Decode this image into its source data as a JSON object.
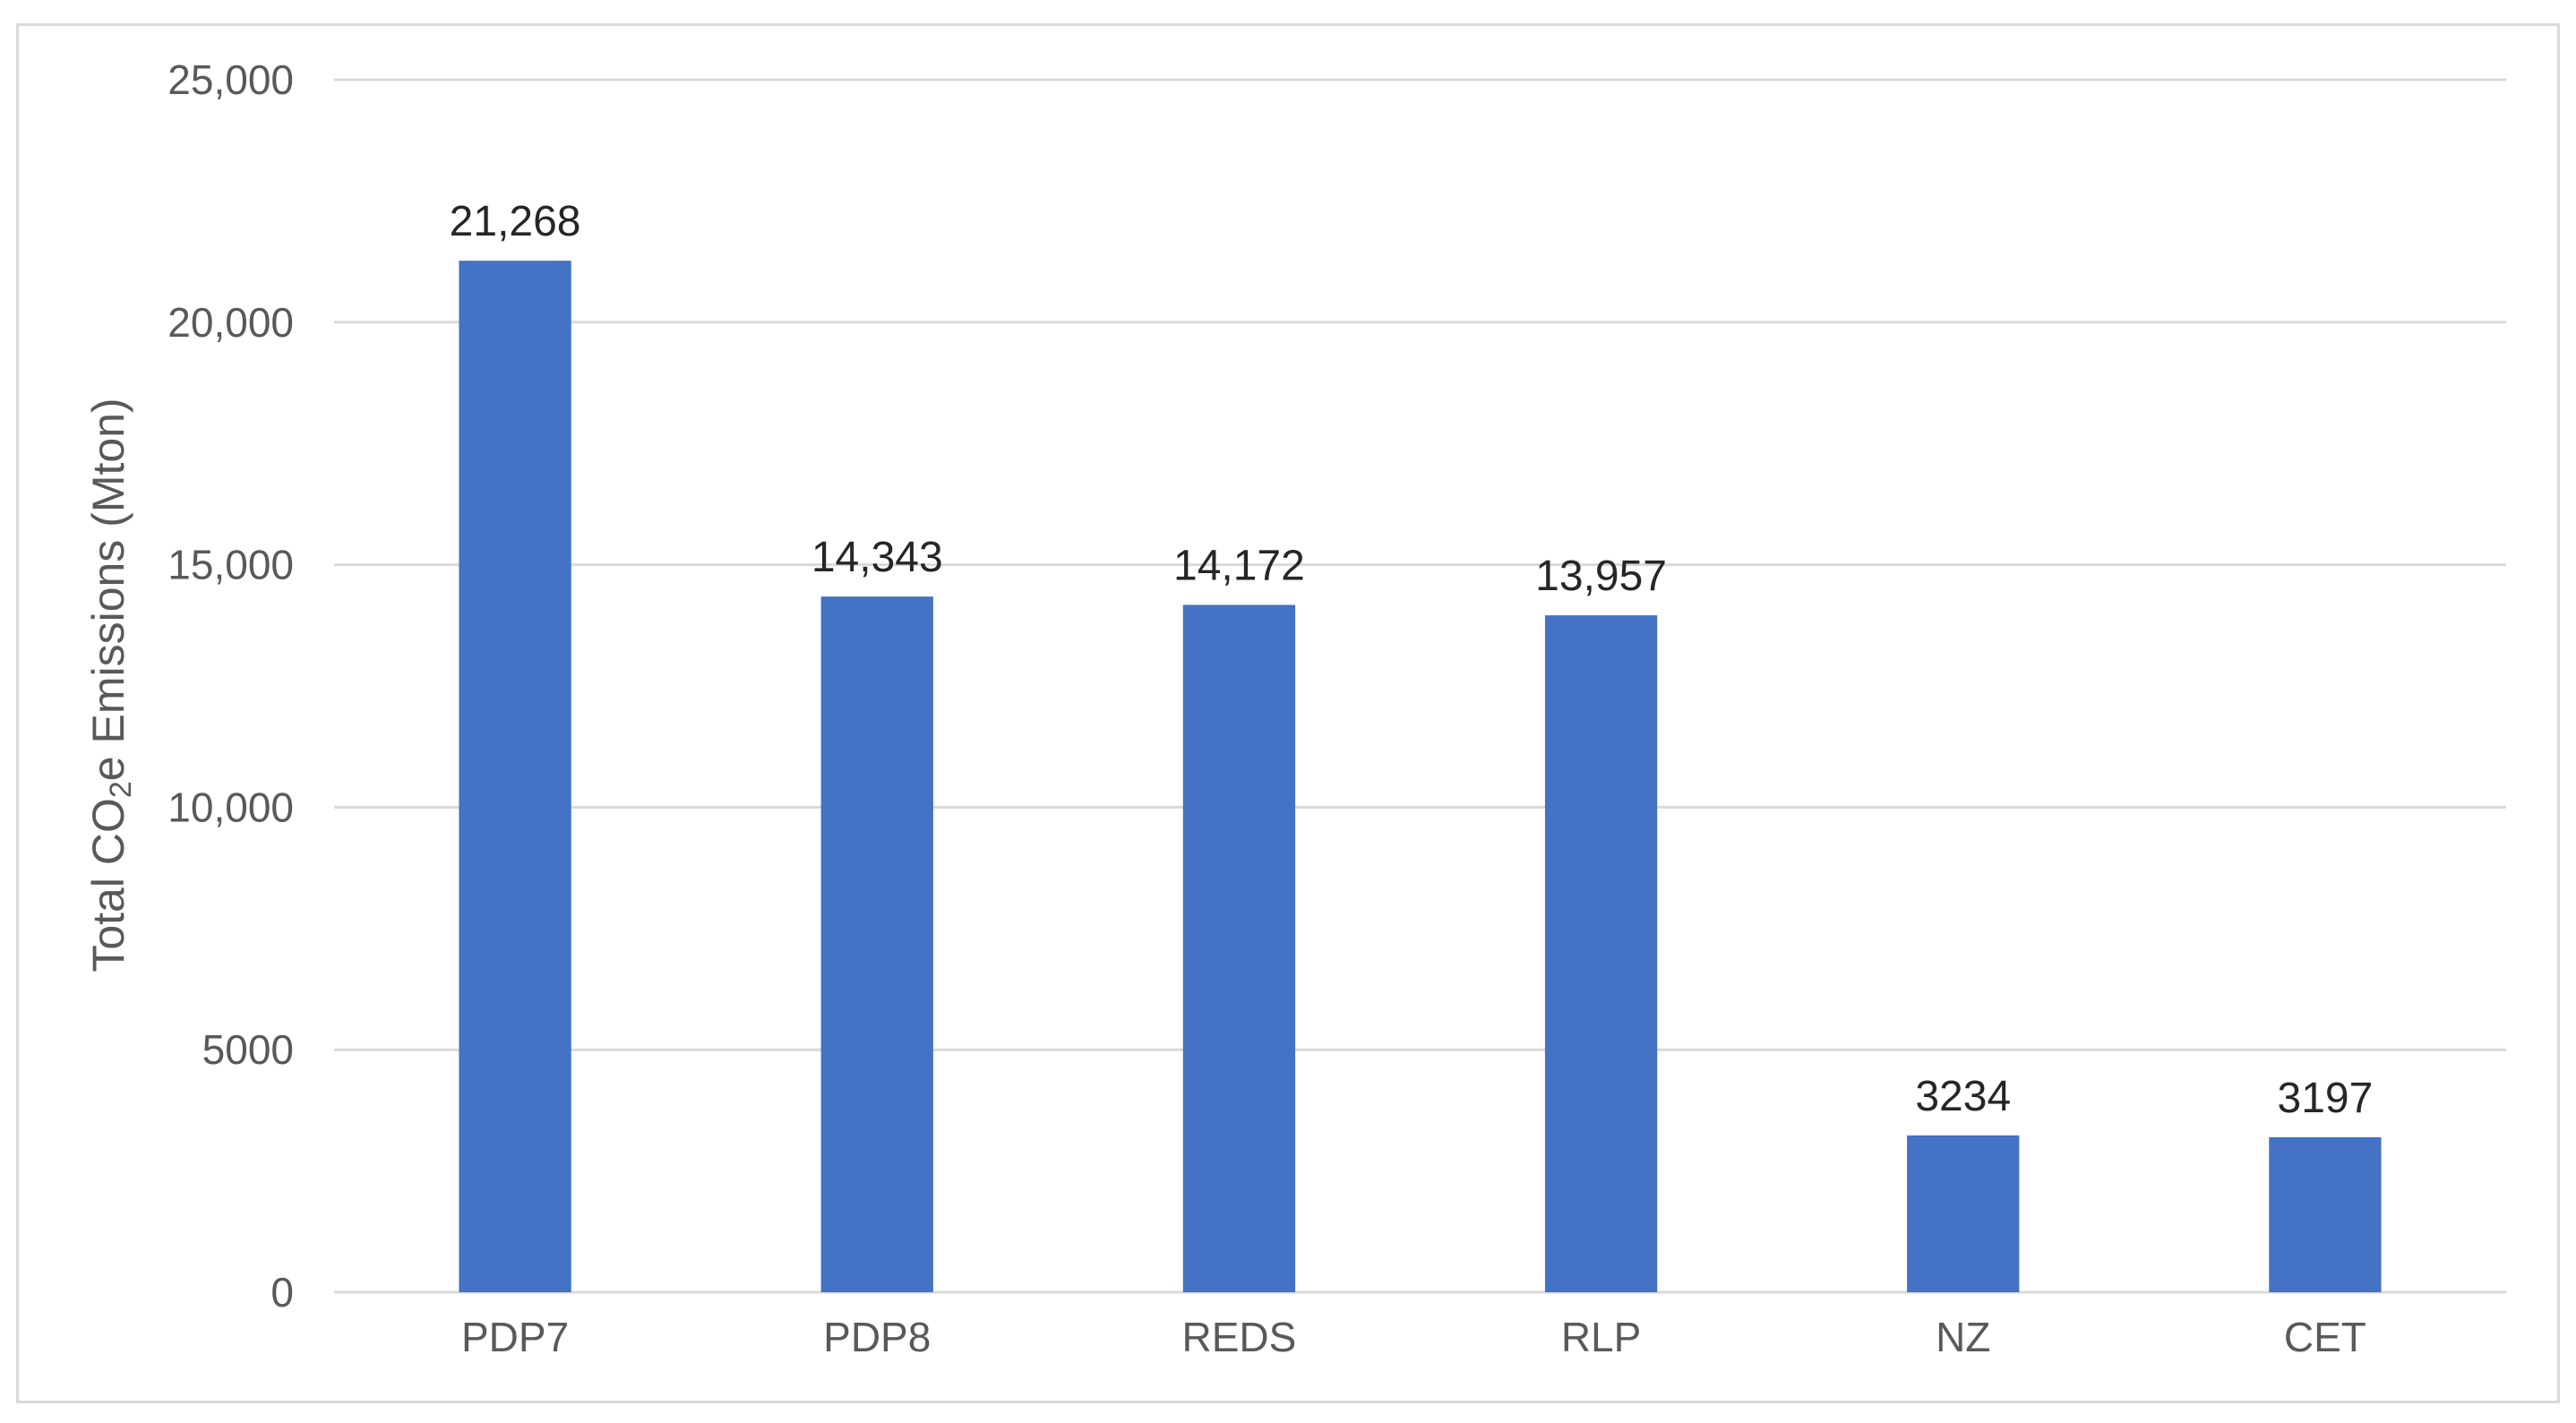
{
  "chart_data": {
    "type": "bar",
    "categories": [
      "PDP7",
      "PDP8",
      "REDS",
      "RLP",
      "NZ",
      "CET"
    ],
    "values": [
      21268,
      14343,
      14172,
      13957,
      3234,
      3197
    ],
    "value_labels": [
      "21,268",
      "14,343",
      "14,172",
      "13,957",
      "3234",
      "3197"
    ],
    "ylabel": "Total CO2e Emissions (Mton)",
    "ylabel_parts": {
      "before": "Total CO",
      "subscript": "2",
      "after": "e Emissions (Mton)"
    },
    "ylim": [
      0,
      25000
    ],
    "yticks": [
      0,
      5000,
      10000,
      15000,
      20000,
      25000
    ],
    "ytick_labels": [
      "0",
      "5000",
      "10,000",
      "15,000",
      "20,000",
      "25,000"
    ],
    "grid": true,
    "legend": "none",
    "bar_color": "#4472c4",
    "grid_color": "#d9d9d9"
  }
}
